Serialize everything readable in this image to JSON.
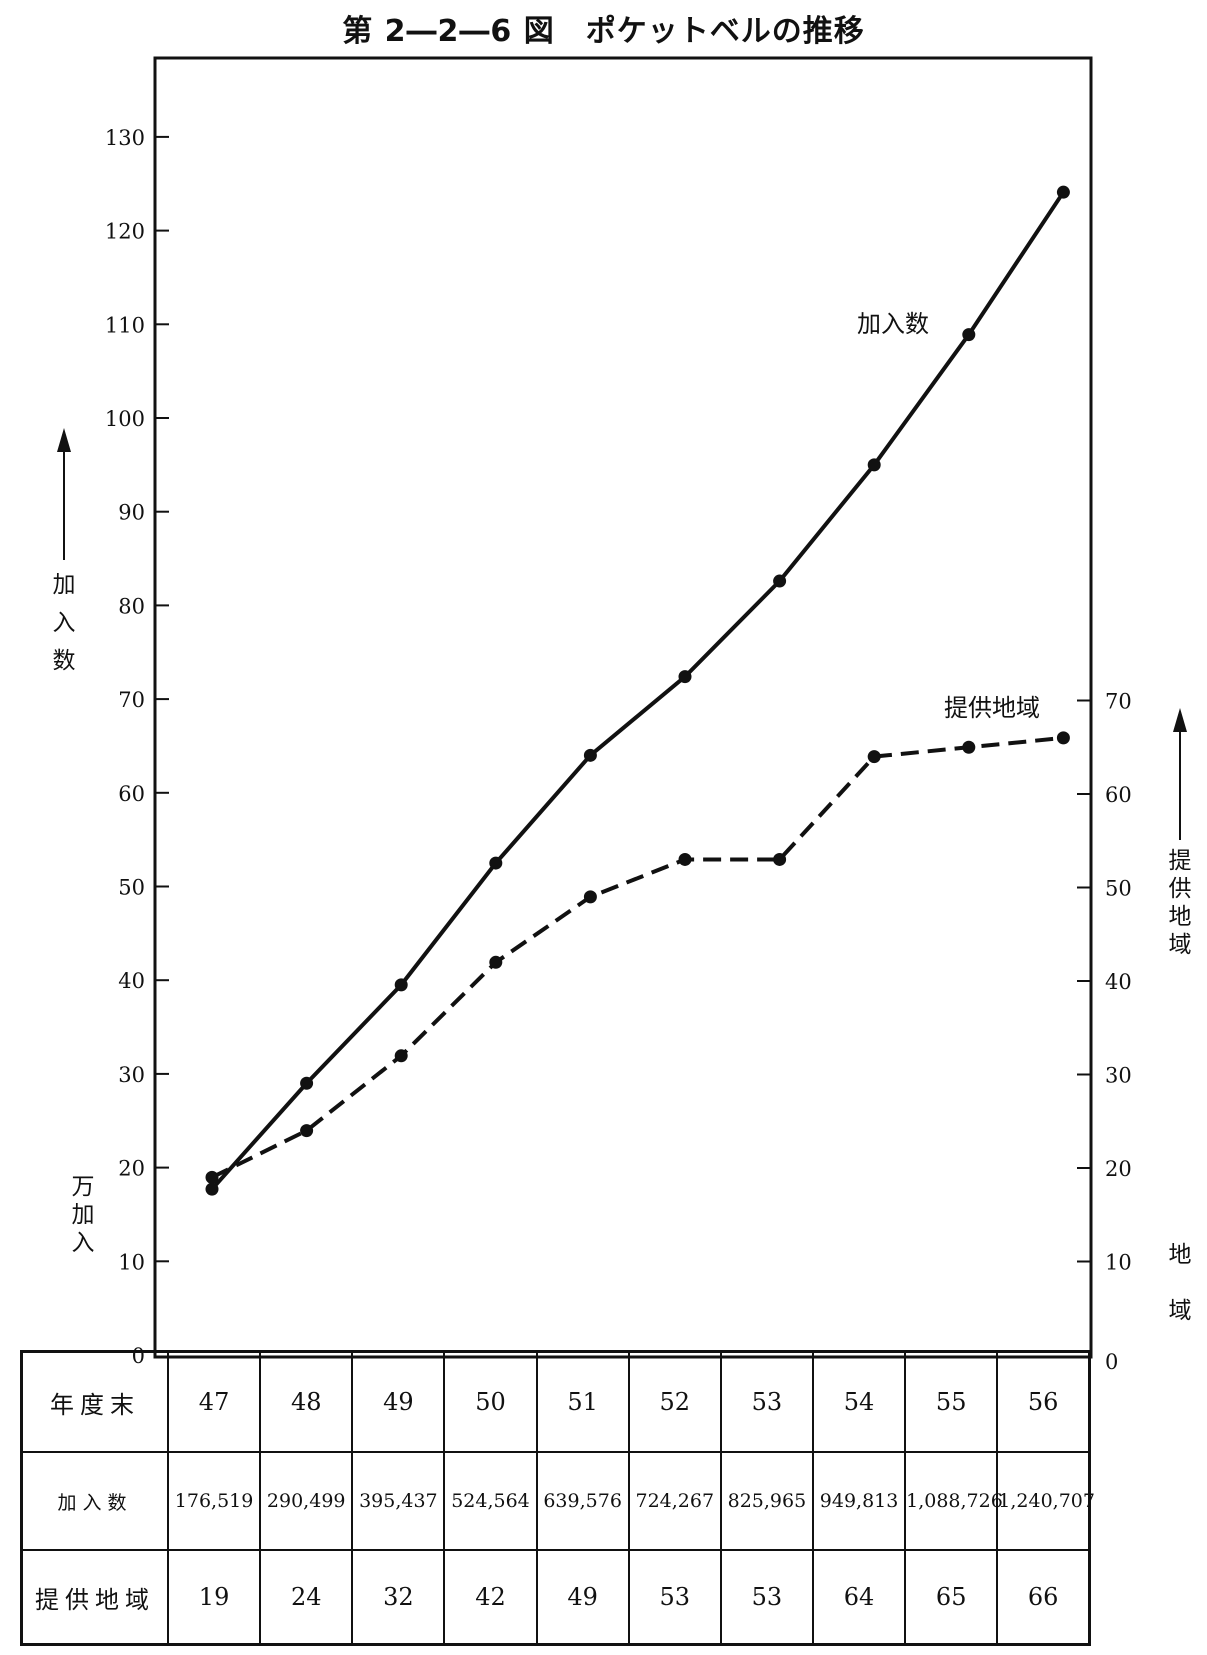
{
  "title": "第 2―2―6 図　ポケットベルの推移",
  "chart_data": {
    "type": "line",
    "title": "第 2―2―6 図　ポケットベルの推移",
    "categories": [
      "47",
      "48",
      "49",
      "50",
      "51",
      "52",
      "53",
      "54",
      "55",
      "56"
    ],
    "left_axis": {
      "label": "加入数",
      "unit_label": "万加入",
      "range": [
        0,
        130
      ],
      "ticks": [
        0,
        10,
        20,
        30,
        40,
        50,
        60,
        70,
        80,
        90,
        100,
        110,
        120,
        130
      ]
    },
    "right_axis": {
      "label": "提供地域",
      "unit_label": "地域",
      "range": [
        0,
        70
      ],
      "ticks": [
        0,
        10,
        20,
        30,
        40,
        50,
        60,
        70
      ]
    },
    "series": [
      {
        "name": "加入数",
        "axis": "left",
        "style": "solid",
        "values": [
          17.7,
          29.0,
          39.5,
          52.5,
          64.0,
          72.4,
          82.6,
          95.0,
          108.9,
          124.1
        ]
      },
      {
        "name": "提供地域",
        "axis": "right",
        "style": "dashed",
        "values": [
          19,
          24,
          32,
          42,
          49,
          53,
          53,
          64,
          65,
          66
        ]
      }
    ],
    "grid": false
  },
  "table": {
    "rows": [
      {
        "header": "年度末",
        "cells": [
          "47",
          "48",
          "49",
          "50",
          "51",
          "52",
          "53",
          "54",
          "55",
          "56"
        ]
      },
      {
        "header": "加入数",
        "cells": [
          "176,519",
          "290,499",
          "395,437",
          "524,564",
          "639,576",
          "724,267",
          "825,965",
          "949,813",
          "1,088,726",
          "1,240,707"
        ]
      },
      {
        "header": "提供地域",
        "cells": [
          "19",
          "24",
          "32",
          "42",
          "49",
          "53",
          "53",
          "64",
          "65",
          "66"
        ]
      }
    ]
  }
}
